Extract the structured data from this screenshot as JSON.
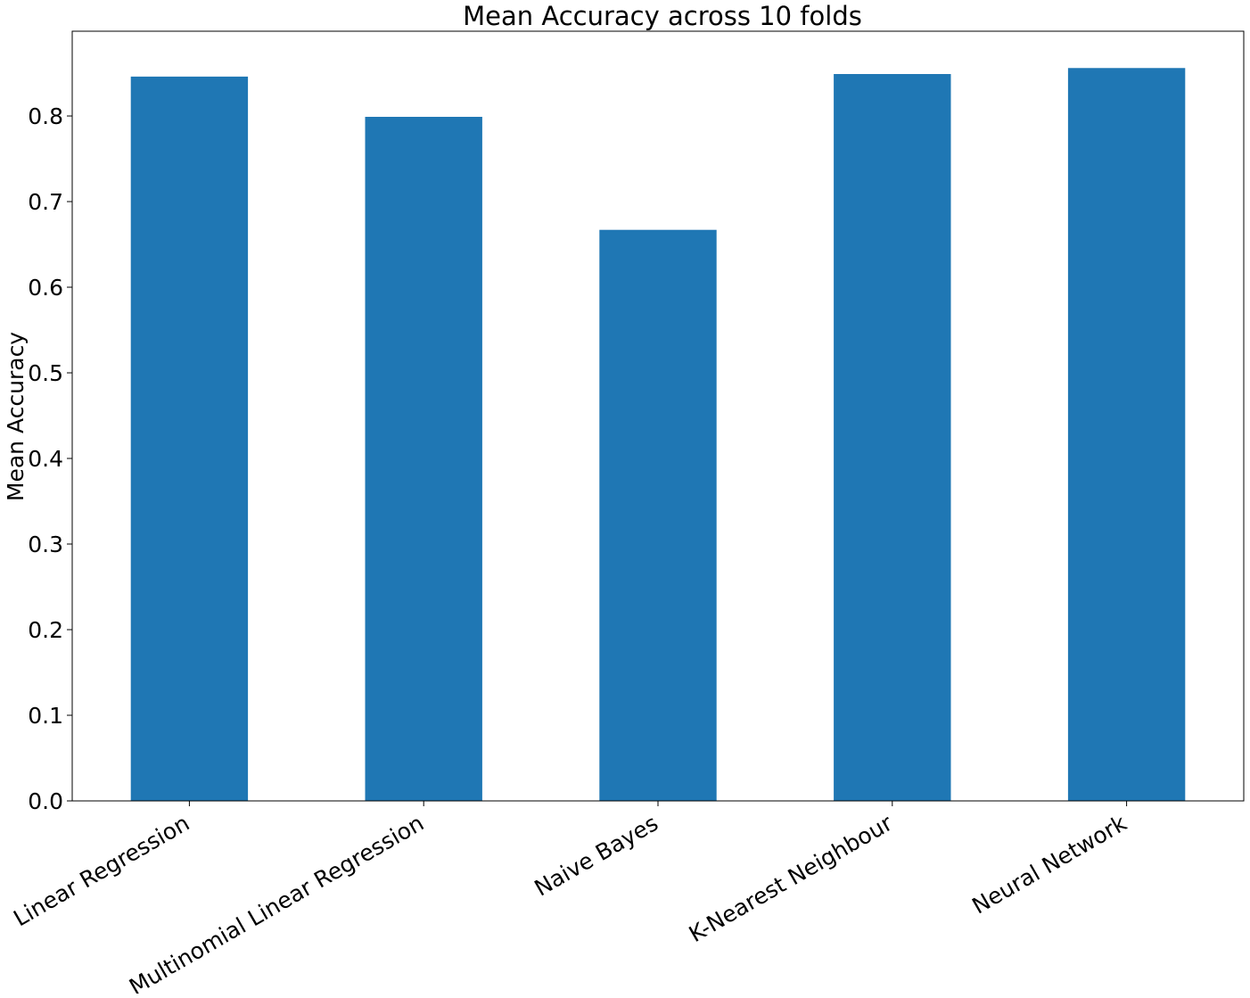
{
  "chart_data": {
    "type": "bar",
    "title": "Mean Accuracy across 10 folds",
    "xlabel": "",
    "ylabel": "Mean Accuracy",
    "categories": [
      "Linear Regression",
      "Multinomial Linear Regression",
      "Naive Bayes",
      "K-Nearest Neighbour",
      "Neural Network"
    ],
    "values": [
      0.846,
      0.799,
      0.667,
      0.849,
      0.856
    ],
    "ylim": [
      0,
      0.899
    ],
    "yticks": [
      0.0,
      0.1,
      0.2,
      0.3,
      0.4,
      0.5,
      0.6,
      0.7,
      0.8
    ],
    "ytick_labels": [
      "0.0",
      "0.1",
      "0.2",
      "0.3",
      "0.4",
      "0.5",
      "0.6",
      "0.7",
      "0.8"
    ],
    "bar_color": "#1f77b4",
    "grid": false,
    "legend": "none",
    "xtick_rotation_deg": 30
  }
}
